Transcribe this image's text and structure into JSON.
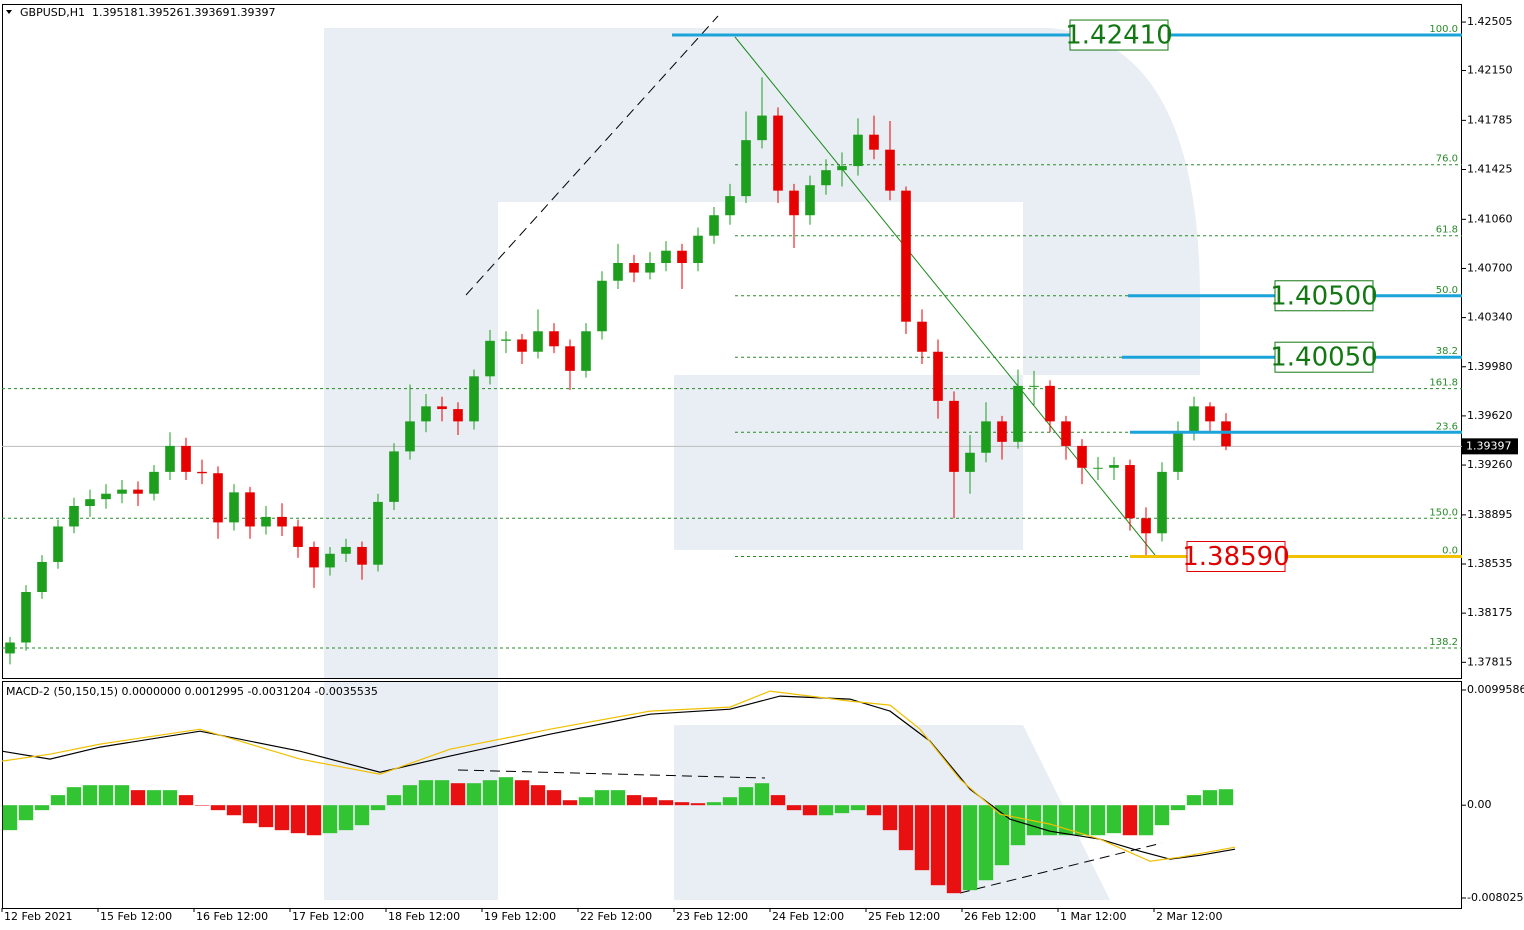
{
  "chart_data": [
    {
      "type": "candlestick",
      "title": "GBPUSD,H1",
      "last_bar": [
        1.39518,
        1.39526,
        1.39369,
        1.39397
      ],
      "xlim": [
        0,
        365
      ],
      "ylim": [
        1.377,
        1.4263
      ],
      "yticks": [
        {
          "value": 1.42505,
          "label": "1.42505"
        },
        {
          "value": 1.4215,
          "label": "1.42150"
        },
        {
          "value": 1.41785,
          "label": "1.41785"
        },
        {
          "value": 1.41425,
          "label": "1.41425"
        },
        {
          "value": 1.4106,
          "label": "1.41060"
        },
        {
          "value": 1.407,
          "label": "1.40700"
        },
        {
          "value": 1.4034,
          "label": "1.40340"
        },
        {
          "value": 1.3998,
          "label": "1.39980"
        },
        {
          "value": 1.3962,
          "label": "1.39620"
        },
        {
          "value": 1.3926,
          "label": "1.39260"
        },
        {
          "value": 1.38895,
          "label": "1.38895"
        },
        {
          "value": 1.38535,
          "label": "1.38535"
        },
        {
          "value": 1.38175,
          "label": "1.38175"
        },
        {
          "value": 1.37815,
          "label": "1.37815"
        }
      ],
      "up_color": "#1e9e1e",
      "down_color": "#e60000",
      "x": [
        2,
        6,
        10,
        14,
        18,
        22,
        26,
        30,
        34,
        38,
        42,
        46,
        50,
        54,
        58,
        62,
        66,
        70,
        74,
        78,
        82,
        86,
        90,
        94,
        98,
        102,
        106,
        110,
        114,
        118,
        122,
        126,
        130,
        134,
        138,
        142,
        146,
        150,
        154,
        158,
        162,
        166,
        170,
        174,
        178,
        182,
        186,
        190,
        194,
        198,
        202,
        206,
        210,
        214,
        218,
        222,
        226,
        230,
        234,
        238,
        242,
        246,
        250,
        254,
        258,
        262,
        266,
        270,
        274,
        278,
        282,
        286,
        290,
        294,
        298,
        302,
        306
      ],
      "candles": [
        [
          1.3788,
          1.38,
          1.378,
          1.3796
        ],
        [
          1.3796,
          1.3838,
          1.379,
          1.3833
        ],
        [
          1.3833,
          1.386,
          1.3828,
          1.3855
        ],
        [
          1.3855,
          1.3886,
          1.385,
          1.3881
        ],
        [
          1.3881,
          1.3902,
          1.3876,
          1.3896
        ],
        [
          1.3896,
          1.3908,
          1.3888,
          1.3901
        ],
        [
          1.3901,
          1.3912,
          1.3894,
          1.3905
        ],
        [
          1.3905,
          1.3915,
          1.3898,
          1.3908
        ],
        [
          1.3908,
          1.3914,
          1.3896,
          1.3905
        ],
        [
          1.3905,
          1.3926,
          1.39,
          1.3921
        ],
        [
          1.3921,
          1.395,
          1.3915,
          1.394
        ],
        [
          1.394,
          1.3946,
          1.3915,
          1.3921
        ],
        [
          1.3921,
          1.393,
          1.3912,
          1.392
        ],
        [
          1.392,
          1.3925,
          1.3872,
          1.3884
        ],
        [
          1.3884,
          1.3912,
          1.3878,
          1.3906
        ],
        [
          1.3906,
          1.391,
          1.3872,
          1.3881
        ],
        [
          1.3881,
          1.3896,
          1.3875,
          1.3888
        ],
        [
          1.3888,
          1.3898,
          1.3874,
          1.3881
        ],
        [
          1.3881,
          1.3886,
          1.3858,
          1.3866
        ],
        [
          1.3866,
          1.387,
          1.3836,
          1.3851
        ],
        [
          1.3851,
          1.3866,
          1.3845,
          1.3861
        ],
        [
          1.3861,
          1.3872,
          1.3855,
          1.3866
        ],
        [
          1.3866,
          1.387,
          1.3842,
          1.3853
        ],
        [
          1.3853,
          1.3905,
          1.3848,
          1.3899
        ],
        [
          1.3899,
          1.3942,
          1.3893,
          1.3936
        ],
        [
          1.3936,
          1.3985,
          1.393,
          1.3958
        ],
        [
          1.3958,
          1.3978,
          1.395,
          1.3969
        ],
        [
          1.3969,
          1.3976,
          1.3958,
          1.3967
        ],
        [
          1.3967,
          1.3972,
          1.3948,
          1.3958
        ],
        [
          1.3958,
          1.3996,
          1.3952,
          1.3991
        ],
        [
          1.3991,
          1.4025,
          1.3985,
          1.4017
        ],
        [
          1.4017,
          1.4024,
          1.4008,
          1.4018
        ],
        [
          1.4018,
          1.4022,
          1.4,
          1.4009
        ],
        [
          1.4009,
          1.404,
          1.4004,
          1.4024
        ],
        [
          1.4024,
          1.403,
          1.4008,
          1.4013
        ],
        [
          1.4013,
          1.4018,
          1.3981,
          1.3995
        ],
        [
          1.3995,
          1.403,
          1.399,
          1.4024
        ],
        [
          1.4024,
          1.4068,
          1.4018,
          1.4061
        ],
        [
          1.4061,
          1.4088,
          1.4055,
          1.4074
        ],
        [
          1.4074,
          1.408,
          1.406,
          1.4067
        ],
        [
          1.4067,
          1.4082,
          1.4062,
          1.4074
        ],
        [
          1.4074,
          1.409,
          1.4068,
          1.4083
        ],
        [
          1.4083,
          1.4088,
          1.4055,
          1.4074
        ],
        [
          1.4074,
          1.41,
          1.4068,
          1.4094
        ],
        [
          1.4094,
          1.4115,
          1.4088,
          1.4109
        ],
        [
          1.4109,
          1.4132,
          1.4102,
          1.4123
        ],
        [
          1.4123,
          1.4185,
          1.4118,
          1.4164
        ],
        [
          1.4164,
          1.421,
          1.4158,
          1.4182
        ],
        [
          1.4182,
          1.4188,
          1.4118,
          1.4127
        ],
        [
          1.4127,
          1.4132,
          1.4085,
          1.4109
        ],
        [
          1.4109,
          1.4138,
          1.4102,
          1.4131
        ],
        [
          1.4131,
          1.415,
          1.4124,
          1.4142
        ],
        [
          1.4142,
          1.4155,
          1.413,
          1.4145
        ],
        [
          1.4145,
          1.418,
          1.4138,
          1.4168
        ],
        [
          1.4168,
          1.4182,
          1.415,
          1.4157
        ],
        [
          1.4157,
          1.4178,
          1.412,
          1.4127
        ],
        [
          1.4127,
          1.413,
          1.4022,
          1.4031
        ],
        [
          1.4031,
          1.404,
          1.4,
          1.4009
        ],
        [
          1.4009,
          1.4018,
          1.396,
          1.3973
        ],
        [
          1.3973,
          1.398,
          1.3887,
          1.3921
        ],
        [
          1.3921,
          1.3948,
          1.3905,
          1.3935
        ],
        [
          1.3935,
          1.3972,
          1.3928,
          1.3958
        ],
        [
          1.3958,
          1.3962,
          1.393,
          1.3943
        ],
        [
          1.3943,
          1.3996,
          1.3938,
          1.3984
        ],
        [
          1.3984,
          1.3995,
          1.397,
          1.3984
        ],
        [
          1.3984,
          1.3988,
          1.395,
          1.3958
        ],
        [
          1.3958,
          1.3962,
          1.393,
          1.394
        ],
        [
          1.394,
          1.3945,
          1.3912,
          1.3924
        ],
        [
          1.3924,
          1.3932,
          1.3915,
          1.3924
        ],
        [
          1.3924,
          1.3932,
          1.3915,
          1.3926
        ],
        [
          1.3926,
          1.393,
          1.3878,
          1.3887
        ],
        [
          1.3887,
          1.3895,
          1.3859,
          1.3876
        ],
        [
          1.3876,
          1.3928,
          1.387,
          1.3921
        ],
        [
          1.3921,
          1.3958,
          1.3915,
          1.395
        ],
        [
          1.395,
          1.3976,
          1.3944,
          1.3969
        ],
        [
          1.3969,
          1.3972,
          1.395,
          1.3958
        ],
        [
          1.3958,
          1.3964,
          1.39369,
          1.39397
        ]
      ],
      "current_price": 1.39397,
      "fib_levels": [
        {
          "label": "100.0",
          "price": 1.4241
        },
        {
          "label": "76.0",
          "price": 1.4146
        },
        {
          "label": "61.8",
          "price": 1.4094
        },
        {
          "label": "50.0",
          "price": 1.405
        },
        {
          "label": "38.2",
          "price": 1.4005
        },
        {
          "label": "23.6",
          "price": 1.395
        },
        {
          "label": "0.0",
          "price": 1.3859
        },
        {
          "label": "161.8",
          "price": 1.3982
        },
        {
          "label": "150.0",
          "price": 1.3887
        },
        {
          "label": "138.2",
          "price": 1.3792
        }
      ],
      "fib_color": "#2a8a2a",
      "levels": [
        {
          "value": 1.4241,
          "label": "1.42410",
          "color": "#137813",
          "line_color": "#1aa3d9"
        },
        {
          "value": 1.405,
          "label": "1.40500",
          "color": "#137813",
          "line_color": "#1aa3d9"
        },
        {
          "value": 1.4005,
          "label": "1.40050",
          "color": "#137813",
          "line_color": "#1aa3d9"
        },
        {
          "value": 1.395,
          "line_color": "#1aa3d9"
        },
        {
          "value": 1.3859,
          "label": "1.38590",
          "color": "#e00000",
          "line_color": "#f2c200"
        }
      ]
    },
    {
      "type": "macd",
      "title": "MACD-2 (50,150,15) 0.0000000 0.0012995 -0.0031204 -0.0035535",
      "xlim": [
        0,
        365
      ],
      "ylim": [
        -0.00889,
        0.01065
      ],
      "yticks": [
        0.0099586,
        {
          "value": 0,
          "label": "0.00"
        },
        -0.0080256
      ],
      "xticks": [
        {
          "value": 0,
          "label": "12 Feb 2021"
        },
        {
          "value": 24,
          "label": "15 Feb 12:00"
        },
        {
          "value": 48,
          "label": "16 Feb 12:00"
        },
        {
          "value": 72,
          "label": "17 Feb 12:00"
        },
        {
          "value": 96,
          "label": "18 Feb 12:00"
        },
        {
          "value": 120,
          "label": "19 Feb 12:00"
        },
        {
          "value": 144,
          "label": "22 Feb 12:00"
        },
        {
          "value": 168,
          "label": "23 Feb 12:00"
        },
        {
          "value": 192,
          "label": "24 Feb 12:00"
        },
        {
          "value": 216,
          "label": "25 Feb 12:00"
        },
        {
          "value": 240,
          "label": "26 Feb 12:00"
        },
        {
          "value": 264,
          "label": "1 Mar 12:00"
        },
        {
          "value": 288,
          "label": "2 Mar 12:00"
        }
      ],
      "rising_color": "#33c433",
      "falling_color": "#e81010",
      "x": [
        2,
        6,
        10,
        14,
        18,
        22,
        26,
        30,
        34,
        38,
        42,
        46,
        50,
        54,
        58,
        62,
        66,
        70,
        74,
        78,
        82,
        86,
        90,
        94,
        98,
        102,
        106,
        110,
        114,
        118,
        122,
        126,
        130,
        134,
        138,
        142,
        146,
        150,
        154,
        158,
        162,
        166,
        170,
        174,
        178,
        182,
        186,
        190,
        194,
        198,
        202,
        206,
        210,
        214,
        218,
        222,
        226,
        230,
        234,
        238,
        242,
        246,
        250,
        254,
        258,
        262,
        266,
        270,
        274,
        278,
        282,
        286,
        290,
        294,
        298,
        302,
        306
      ],
      "histogram": [
        -0.00216,
        -0.0013,
        -0.00043,
        0.00087,
        0.00156,
        0.00173,
        0.00173,
        0.00173,
        0.0013,
        0.0013,
        0.0013,
        0.00087,
        0,
        -0.00043,
        -0.00087,
        -0.00156,
        -0.0019,
        -0.00216,
        -0.00242,
        -0.0026,
        -0.00242,
        -0.00216,
        -0.00173,
        -0.00043,
        0.00087,
        0.00173,
        0.00216,
        0.00216,
        0.0019,
        0.0019,
        0.00216,
        0.00242,
        0.00216,
        0.00173,
        0.0013,
        0.00043,
        0.00069,
        0.0013,
        0.0013,
        0.00087,
        0.00069,
        0.00043,
        0.00026,
        0.00017,
        0.00026,
        0.00069,
        0.00156,
        0.0019,
        0.00087,
        -0.00043,
        -0.00087,
        -0.00087,
        -0.00069,
        -0.00043,
        -0.00087,
        -0.00216,
        -0.00389,
        -0.00562,
        -0.00692,
        -0.00761,
        -0.00735,
        -0.00649,
        -0.00519,
        -0.00346,
        -0.0026,
        -0.0026,
        -0.0026,
        -0.0026,
        -0.0026,
        -0.00242,
        -0.0026,
        -0.0026,
        -0.00173,
        -0.00043,
        0.00087,
        0.0013,
        0.00138
      ],
      "series": [
        {
          "color": "#000000",
          "x": [
            0,
            12,
            24.5,
            49.5,
            74.5,
            94.5,
            112,
            137,
            162,
            182,
            194.5,
            212,
            222,
            232,
            242,
            252,
            262,
            274.5,
            284.5,
            292,
            299.5,
            308.25
          ],
          "values": [
            0.00467,
            0.00398,
            0.00502,
            0.0064,
            0.00467,
            0.00285,
            0.00424,
            0.00614,
            0.00787,
            0.0083,
            0.00943,
            0.00917,
            0.00813,
            0.00554,
            0.00138,
            -0.00121,
            -0.00225,
            -0.00294,
            -0.00398,
            -0.00467,
            -0.00433,
            -0.00381
          ]
        },
        {
          "color": "#f0c000",
          "x": [
            0,
            12,
            24.5,
            49.5,
            74.5,
            94.5,
            112,
            137,
            162,
            182,
            192,
            212,
            222,
            229.5,
            239.5,
            249.5,
            262,
            274.5,
            287,
            294.5,
            308.25
          ],
          "values": [
            0.00381,
            0.00441,
            0.00528,
            0.00657,
            0.00398,
            0.00268,
            0.00484,
            0.00657,
            0.00813,
            0.00848,
            0.00986,
            0.009,
            0.00865,
            0.00657,
            0.00225,
            -0.00078,
            -0.00164,
            -0.00294,
            -0.00484,
            -0.0045,
            -0.00363
          ]
        }
      ]
    }
  ]
}
